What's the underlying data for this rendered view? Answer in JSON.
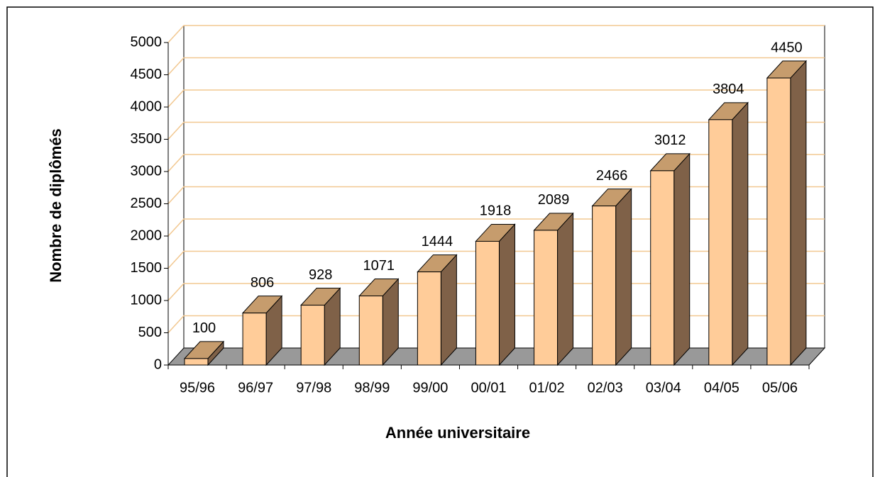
{
  "chart_data": {
    "type": "bar3d",
    "x_label": "Année universitaire",
    "y_label": "Nombre de diplômés",
    "categories": [
      "95/96",
      "96/97",
      "97/98",
      "98/99",
      "99/00",
      "00/01",
      "01/02",
      "02/03",
      "03/04",
      "04/05",
      "05/06"
    ],
    "values": [
      100,
      806,
      928,
      1071,
      1444,
      1918,
      2089,
      2466,
      3012,
      3804,
      4450
    ],
    "colors": {
      "front": "#FFCC99",
      "top": "#C69C6D",
      "side": "#7F6148",
      "floor": "#999999",
      "grid": "#F2C891"
    },
    "ylim": [
      0,
      5000
    ],
    "yticks": [
      0,
      500,
      1000,
      1500,
      2000,
      2500,
      3000,
      3500,
      4000,
      4500,
      5000
    ],
    "grid": true
  }
}
